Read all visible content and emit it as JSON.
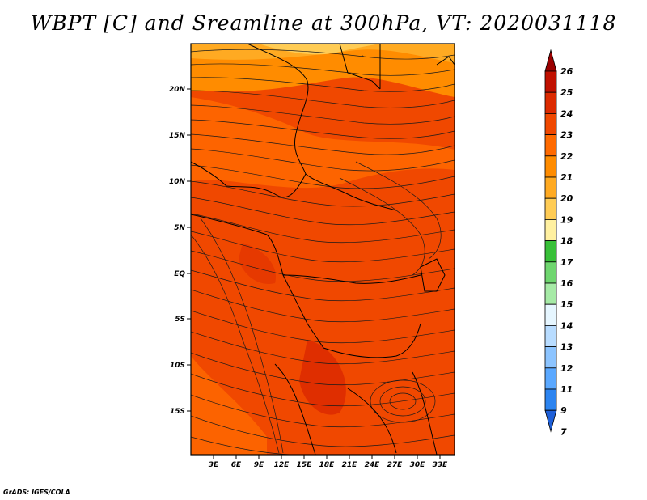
{
  "title": "WBPT [C] and Sreamline at 300hPa, VT: 2020031118",
  "credit": "GrADS: IGES/COLA",
  "map": {
    "variable": "Wet-bulb potential temperature (shaded) with streamlines",
    "level": "300hPa",
    "valid_time": "2020031118",
    "lat_labels": [
      "20N",
      "15N",
      "10N",
      "5N",
      "EQ",
      "5S",
      "10S",
      "15S"
    ],
    "lon_labels": [
      "3E",
      "6E",
      "9E",
      "12E",
      "15E",
      "18E",
      "21E",
      "24E",
      "27E",
      "30E",
      "33E"
    ]
  },
  "colorbar": {
    "labels": [
      "26",
      "25",
      "24",
      "23",
      "22",
      "21",
      "20",
      "19",
      "18",
      "17",
      "16",
      "15",
      "14",
      "13",
      "12",
      "11",
      "9",
      "7"
    ],
    "colors": [
      "#9b0000",
      "#c01000",
      "#dc2a00",
      "#f04800",
      "#ff6a00",
      "#ff8c00",
      "#ffaa22",
      "#ffcc55",
      "#fff0a0",
      "#38c038",
      "#6fd66f",
      "#a6eaa6",
      "#e6f6ff",
      "#b8dcff",
      "#8cc4ff",
      "#5aa8ff",
      "#2c84f0",
      "#1e5fd8"
    ]
  }
}
